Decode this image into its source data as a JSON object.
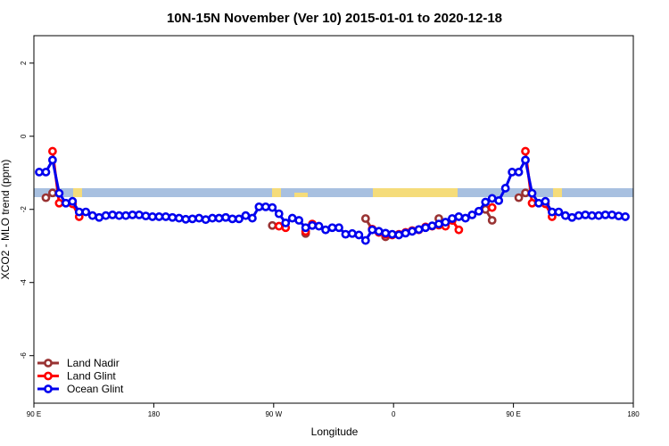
{
  "chart_data": {
    "type": "line",
    "title": "10N-15N November (Ver 10)   2015-01-01 to 2020-12-18",
    "x_label": "Longitude",
    "y_label": "XCO2 - MLO trend (ppm)",
    "xlim": [
      90,
      540
    ],
    "ylim": [
      -7.3,
      2.75
    ],
    "xticks": [
      {
        "value": 90,
        "label": "90 E"
      },
      180,
      {
        "value": 270,
        "label": "90 W"
      },
      {
        "value": 360,
        "label": "0"
      },
      {
        "value": 450,
        "label": "90 E"
      },
      {
        "value": 540,
        "label": "180"
      }
    ],
    "yticks": [
      -6,
      -4,
      -2,
      0,
      2
    ],
    "legend": "bottom-left",
    "x": [
      94,
      99,
      104,
      109,
      114,
      119,
      124,
      129,
      134,
      139,
      144,
      149,
      154,
      159,
      164,
      169,
      174,
      179,
      184,
      189,
      194,
      199,
      204,
      209,
      214,
      219,
      224,
      229,
      234,
      239,
      244,
      249,
      254,
      259,
      264,
      269,
      274,
      279,
      284,
      289,
      294,
      299,
      304,
      309,
      314,
      319,
      324,
      329,
      334,
      339,
      344,
      349,
      354,
      359,
      364,
      369,
      374,
      379,
      384,
      389,
      394,
      399,
      404,
      409,
      414,
      419,
      424,
      429,
      434,
      439,
      444,
      449,
      454,
      459,
      464,
      469,
      474,
      479,
      484,
      489,
      494,
      499,
      504,
      509,
      514,
      519,
      524,
      529,
      534
    ],
    "series": [
      {
        "name": "Land Nadir",
        "color": "#993333",
        "values": [
          null,
          -1.68,
          -1.55,
          null,
          null,
          null,
          null,
          null,
          null,
          null,
          null,
          null,
          null,
          null,
          null,
          null,
          null,
          null,
          null,
          null,
          null,
          null,
          null,
          null,
          null,
          null,
          null,
          null,
          null,
          null,
          null,
          null,
          null,
          null,
          null,
          -2.44,
          null,
          null,
          null,
          null,
          -2.66,
          null,
          null,
          null,
          null,
          null,
          null,
          null,
          null,
          -2.25,
          -2.55,
          null,
          -2.75,
          null,
          null,
          null,
          null,
          null,
          null,
          null,
          -2.25,
          null,
          -2.3,
          null,
          null,
          null,
          null,
          -2.0,
          -2.3,
          null,
          null,
          null,
          -1.68,
          -1.55,
          null,
          null,
          null,
          null,
          null,
          null,
          null,
          null,
          null,
          null,
          null,
          null,
          null,
          null,
          null
        ]
      },
      {
        "name": "Land Glint",
        "color": "#ff0000",
        "values": [
          null,
          null,
          -0.41,
          -1.83,
          null,
          -1.85,
          -2.2,
          null,
          null,
          null,
          null,
          null,
          null,
          null,
          null,
          null,
          null,
          null,
          null,
          null,
          null,
          null,
          null,
          null,
          null,
          null,
          null,
          null,
          null,
          null,
          null,
          null,
          null,
          null,
          null,
          null,
          -2.46,
          -2.5,
          null,
          null,
          -2.6,
          -2.4,
          null,
          null,
          null,
          null,
          null,
          null,
          null,
          null,
          -2.54,
          -2.63,
          -2.68,
          -2.7,
          -2.68,
          -2.63,
          -2.58,
          -2.56,
          -2.48,
          -2.46,
          -2.43,
          -2.46,
          -2.3,
          -2.56,
          null,
          null,
          null,
          null,
          -1.95,
          null,
          null,
          null,
          null,
          -0.41,
          -1.83,
          null,
          -1.85,
          -2.2,
          null,
          null,
          null,
          null,
          null,
          null,
          null,
          null,
          null,
          null,
          null
        ]
      },
      {
        "name": "Ocean Glint",
        "color": "#0000ee",
        "values": [
          -0.98,
          -0.98,
          -0.65,
          -1.56,
          -1.83,
          -1.78,
          -2.07,
          -2.07,
          -2.17,
          -2.22,
          -2.17,
          -2.15,
          -2.17,
          -2.17,
          -2.15,
          -2.15,
          -2.18,
          -2.2,
          -2.2,
          -2.2,
          -2.22,
          -2.24,
          -2.27,
          -2.26,
          -2.24,
          -2.28,
          -2.24,
          -2.24,
          -2.22,
          -2.26,
          -2.26,
          -2.17,
          -2.24,
          -1.93,
          -1.93,
          -1.95,
          -2.12,
          -2.37,
          -2.24,
          -2.3,
          -2.5,
          -2.44,
          -2.46,
          -2.56,
          -2.5,
          -2.5,
          -2.68,
          -2.66,
          -2.7,
          -2.85,
          -2.56,
          -2.6,
          -2.65,
          -2.68,
          -2.7,
          -2.65,
          -2.6,
          -2.55,
          -2.5,
          -2.45,
          -2.4,
          -2.35,
          -2.25,
          -2.2,
          -2.24,
          -2.15,
          -2.05,
          -1.8,
          -1.7,
          -1.76,
          -1.42,
          -0.98,
          -0.98,
          -0.65,
          -1.56,
          -1.83,
          -1.78,
          -2.07,
          -2.07,
          -2.17,
          -2.22,
          -2.17,
          -2.15,
          -2.17,
          -2.17,
          -2.15,
          -2.15,
          -2.18,
          -2.2
        ]
      }
    ]
  }
}
